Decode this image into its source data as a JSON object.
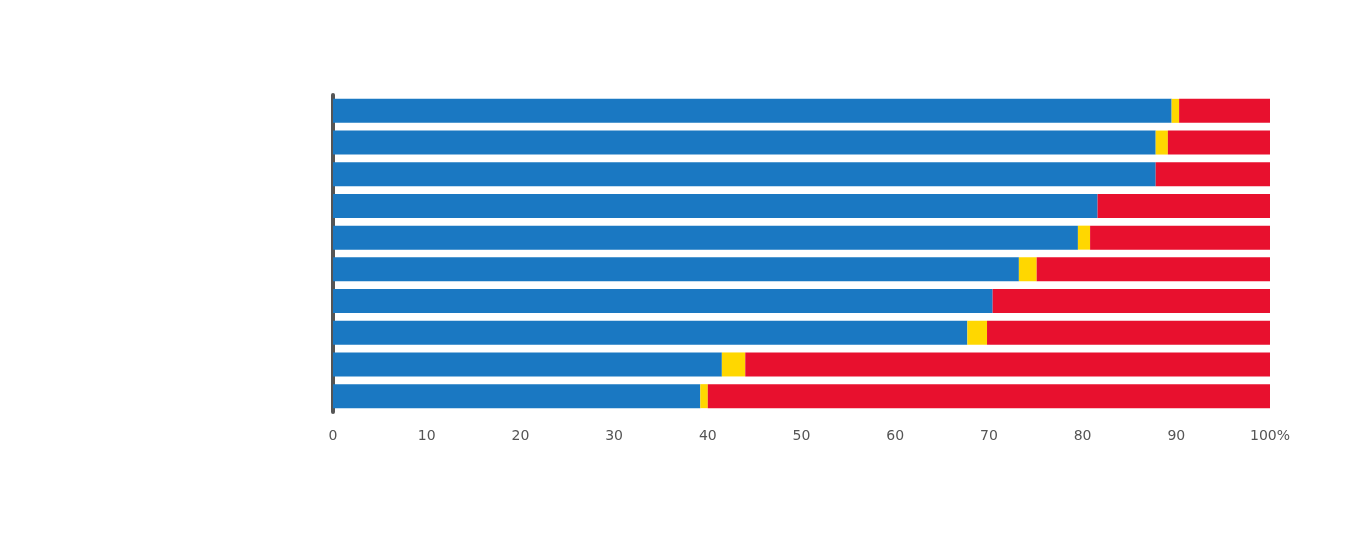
{
  "chart_data": {
    "type": "bar",
    "orientation": "horizontal",
    "stacked": true,
    "categories": [
      null,
      null,
      null,
      null,
      null,
      null,
      null,
      null,
      null,
      null
    ],
    "series": [
      {
        "color": "#1a78c2",
        "values": [
          89.5,
          87.8,
          87.8,
          81.6,
          79.5,
          73.2,
          70.4,
          67.7,
          41.5,
          39.2
        ]
      },
      {
        "color": "#ffd700",
        "values": [
          0.8,
          1.3,
          0,
          0,
          1.3,
          1.9,
          0,
          2.1,
          2.5,
          0.8
        ]
      },
      {
        "color": "#e8102e",
        "values": [
          9.7,
          10.9,
          12.2,
          18.4,
          19.2,
          24.9,
          29.6,
          30.2,
          56,
          60
        ]
      }
    ],
    "xlim": [
      0,
      100
    ],
    "xticks": [
      0,
      10,
      20,
      30,
      40,
      50,
      60,
      70,
      80,
      90,
      {
        "value": 100,
        "label": "100%"
      }
    ],
    "grid": false
  }
}
